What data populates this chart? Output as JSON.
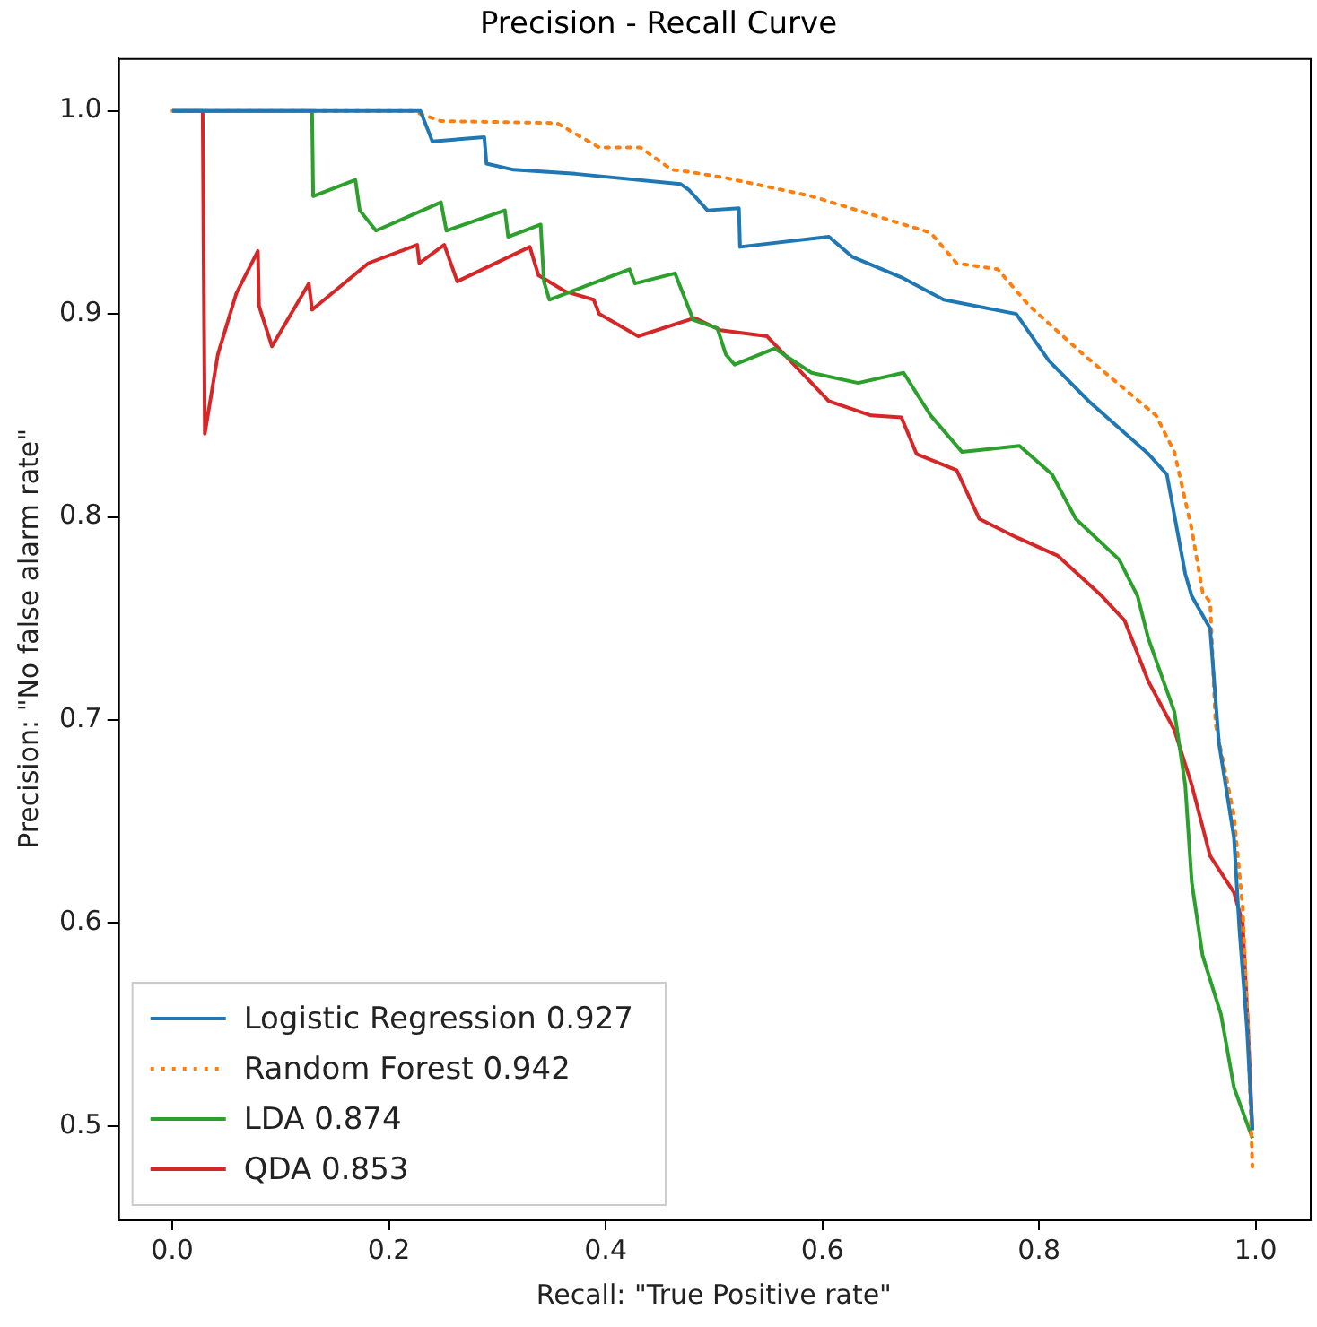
{
  "chart_data": {
    "type": "line",
    "title": "Precision - Recall Curve",
    "xlabel": "Recall: \"True Positive rate\"",
    "ylabel": "Precision: \"No false alarm rate\"",
    "xlim": [
      -0.05,
      1.05
    ],
    "ylim": [
      0.454,
      1.026
    ],
    "xticks": [
      {
        "value": 0,
        "label": "0.0"
      },
      {
        "value": 0.2,
        "label": "0.2"
      },
      {
        "value": 0.4,
        "label": "0.4"
      },
      {
        "value": 0.6,
        "label": "0.6"
      },
      {
        "value": 0.8,
        "label": "0.8"
      },
      {
        "value": 1,
        "label": "1.0"
      }
    ],
    "yticks": [
      {
        "value": 0.5,
        "label": "0.5"
      },
      {
        "value": 0.6,
        "label": "0.6"
      },
      {
        "value": 0.7,
        "label": "0.7"
      },
      {
        "value": 0.8,
        "label": "0.8"
      },
      {
        "value": 0.9,
        "label": "0.9"
      },
      {
        "value": 1,
        "label": "1.0"
      }
    ],
    "grid": false,
    "legend": "bottom left",
    "marker": "none",
    "series": [
      {
        "name": "Logistic Regression 0.927",
        "color": "#1f77b4",
        "line_style": "solid",
        "x": [
          0,
          0.229,
          0.24,
          0.288,
          0.29,
          0.315,
          0.372,
          0.469,
          0.477,
          0.494,
          0.523,
          0.524,
          0.606,
          0.628,
          0.673,
          0.712,
          0.779,
          0.809,
          0.846,
          0.901,
          0.918,
          0.935,
          0.941,
          0.958,
          0.966,
          0.98,
          0.985,
          0.992,
          0.997
        ],
        "values": [
          1,
          1,
          0.985,
          0.987,
          0.974,
          0.971,
          0.969,
          0.964,
          0.961,
          0.951,
          0.952,
          0.933,
          0.938,
          0.928,
          0.918,
          0.907,
          0.9,
          0.877,
          0.857,
          0.831,
          0.821,
          0.772,
          0.761,
          0.745,
          0.689,
          0.642,
          0.597,
          0.548,
          0.498
        ]
      },
      {
        "name": "Random Forest 0.942",
        "color": "#ff7f0e",
        "line_style": "dotted",
        "x": [
          0,
          0.221,
          0.248,
          0.355,
          0.394,
          0.432,
          0.461,
          0.477,
          0.511,
          0.59,
          0.7,
          0.724,
          0.762,
          0.791,
          0.841,
          0.908,
          0.925,
          0.941,
          0.951,
          0.958,
          0.963,
          0.98,
          0.988,
          0.993,
          0.997
        ],
        "values": [
          1,
          1,
          0.995,
          0.994,
          0.982,
          0.982,
          0.971,
          0.97,
          0.967,
          0.958,
          0.94,
          0.925,
          0.922,
          0.904,
          0.88,
          0.85,
          0.832,
          0.794,
          0.763,
          0.758,
          0.698,
          0.653,
          0.608,
          0.548,
          0.48
        ]
      },
      {
        "name": "LDA 0.874",
        "color": "#2ca02c",
        "line_style": "solid",
        "x": [
          0,
          0.129,
          0.13,
          0.169,
          0.173,
          0.188,
          0.248,
          0.253,
          0.307,
          0.31,
          0.34,
          0.343,
          0.348,
          0.422,
          0.427,
          0.464,
          0.481,
          0.503,
          0.511,
          0.519,
          0.556,
          0.59,
          0.633,
          0.675,
          0.7,
          0.729,
          0.782,
          0.812,
          0.834,
          0.874,
          0.891,
          0.901,
          0.925,
          0.935,
          0.941,
          0.951,
          0.968,
          0.98,
          0.997
        ],
        "values": [
          1,
          1,
          0.958,
          0.966,
          0.951,
          0.941,
          0.955,
          0.941,
          0.951,
          0.938,
          0.944,
          0.916,
          0.907,
          0.922,
          0.915,
          0.92,
          0.897,
          0.893,
          0.88,
          0.875,
          0.883,
          0.871,
          0.866,
          0.871,
          0.85,
          0.832,
          0.835,
          0.821,
          0.799,
          0.779,
          0.761,
          0.74,
          0.704,
          0.668,
          0.62,
          0.584,
          0.555,
          0.519,
          0.494
        ]
      },
      {
        "name": "QDA 0.853",
        "color": "#d62728",
        "line_style": "solid",
        "x": [
          0,
          0.028,
          0.03,
          0.042,
          0.059,
          0.079,
          0.08,
          0.092,
          0.126,
          0.129,
          0.181,
          0.226,
          0.228,
          0.251,
          0.263,
          0.33,
          0.338,
          0.363,
          0.389,
          0.394,
          0.43,
          0.482,
          0.506,
          0.549,
          0.606,
          0.645,
          0.673,
          0.687,
          0.724,
          0.745,
          0.779,
          0.817,
          0.858,
          0.879,
          0.901,
          0.925,
          0.941,
          0.958,
          0.98,
          0.988,
          0.993,
          0.997
        ],
        "values": [
          1,
          1,
          0.841,
          0.88,
          0.91,
          0.931,
          0.904,
          0.884,
          0.915,
          0.902,
          0.925,
          0.934,
          0.925,
          0.934,
          0.916,
          0.933,
          0.919,
          0.911,
          0.907,
          0.9,
          0.889,
          0.898,
          0.892,
          0.889,
          0.857,
          0.85,
          0.849,
          0.831,
          0.823,
          0.799,
          0.79,
          0.781,
          0.761,
          0.749,
          0.719,
          0.695,
          0.668,
          0.633,
          0.615,
          0.6,
          0.548,
          0.498
        ]
      }
    ]
  }
}
